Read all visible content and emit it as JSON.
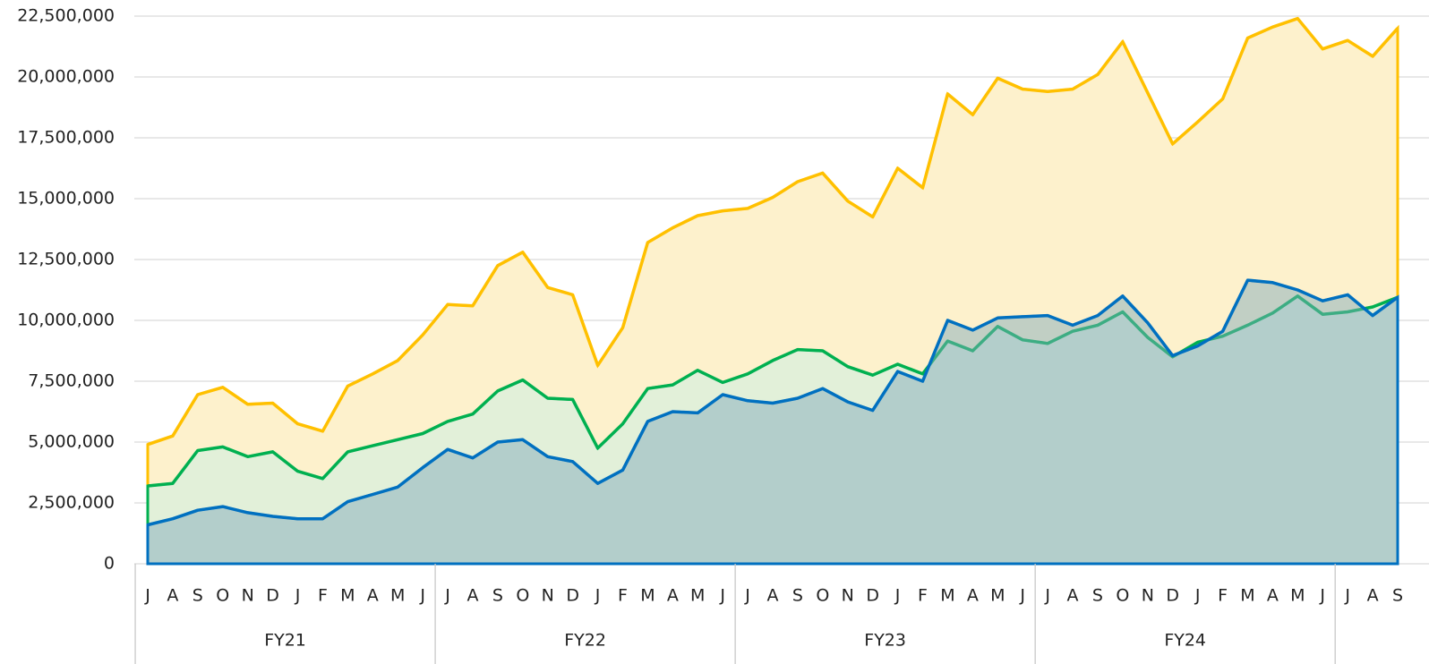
{
  "chart_data": {
    "type": "area",
    "categories": [
      "J",
      "A",
      "S",
      "O",
      "N",
      "D",
      "J",
      "F",
      "M",
      "A",
      "M",
      "J",
      "J",
      "A",
      "S",
      "O",
      "N",
      "D",
      "J",
      "F",
      "M",
      "A",
      "M",
      "J",
      "J",
      "A",
      "S",
      "O",
      "N",
      "D",
      "J",
      "F",
      "M",
      "A",
      "M",
      "J",
      "J",
      "A",
      "S",
      "O",
      "N",
      "D",
      "J",
      "F",
      "M",
      "A",
      "M",
      "J",
      "J",
      "A",
      "S"
    ],
    "groups": [
      {
        "label": "FY21",
        "count": 12
      },
      {
        "label": "FY22",
        "count": 12
      },
      {
        "label": "FY23",
        "count": 12
      },
      {
        "label": "FY24",
        "count": 12
      },
      {
        "label": null,
        "count": 3
      }
    ],
    "series": [
      {
        "color": "#FFC000",
        "fill": "#fdf1cc",
        "values": [
          4900000,
          5250000,
          6950000,
          7250000,
          6550000,
          6600000,
          5750000,
          5450000,
          7300000,
          7800000,
          8350000,
          9400000,
          10650000,
          10600000,
          12250000,
          12800000,
          11350000,
          11050000,
          8150000,
          9700000,
          13200000,
          13800000,
          14300000,
          14500000,
          14600000,
          15050000,
          15700000,
          16050000,
          14900000,
          14250000,
          16250000,
          15450000,
          19300000,
          18450000,
          19950000,
          19500000,
          19400000,
          19500000,
          20100000,
          21450000,
          19350000,
          17250000,
          18150000,
          19100000,
          21600000,
          22050000,
          22400000,
          21150000,
          21500000,
          20850000,
          22000000
        ]
      },
      {
        "color": "#00B050",
        "fill": "#e2f0d9",
        "values": [
          3200000,
          3300000,
          4650000,
          4800000,
          4400000,
          4600000,
          3800000,
          3500000,
          4600000,
          4850000,
          5100000,
          5350000,
          5850000,
          6150000,
          7100000,
          7550000,
          6800000,
          6750000,
          4750000,
          5750000,
          7200000,
          7350000,
          7950000,
          7450000,
          7800000,
          8350000,
          8800000,
          8750000,
          8100000,
          7750000,
          8200000,
          7800000,
          9150000,
          8750000,
          9750000,
          9200000,
          9050000,
          9550000,
          9800000,
          10350000,
          9300000,
          8500000,
          9100000,
          9350000,
          9800000,
          10300000,
          11000000,
          10250000,
          10350000,
          10550000,
          10950000
        ]
      },
      {
        "color": "#0070C0",
        "fill": "#7fa9bd",
        "values": [
          1600000,
          1850000,
          2200000,
          2350000,
          2100000,
          1950000,
          1850000,
          1850000,
          2550000,
          2850000,
          3150000,
          3950000,
          4700000,
          4350000,
          5000000,
          5100000,
          4400000,
          4200000,
          3300000,
          3850000,
          5850000,
          6250000,
          6200000,
          6950000,
          6700000,
          6600000,
          6800000,
          7200000,
          6650000,
          6300000,
          7900000,
          7500000,
          10000000,
          9600000,
          10100000,
          10150000,
          10200000,
          9800000,
          10200000,
          11000000,
          9900000,
          8550000,
          8950000,
          9550000,
          11650000,
          11550000,
          11250000,
          10800000,
          11050000,
          10200000,
          10950000
        ]
      }
    ],
    "ylim": [
      0,
      22500000
    ],
    "yticks": [
      0,
      {
        "value": 2500000,
        "label": "2,500,000"
      },
      {
        "value": 5000000,
        "label": "5,000,000"
      },
      {
        "value": 7500000,
        "label": "7,500,000"
      },
      {
        "value": 10000000,
        "label": "10,000,000"
      },
      {
        "value": 12500000,
        "label": "12,500,000"
      },
      {
        "value": 15000000,
        "label": "15,000,000"
      },
      {
        "value": 17500000,
        "label": "17,500,000"
      },
      {
        "value": 20000000,
        "label": "20,000,000"
      },
      {
        "value": 22500000,
        "label": "22,500,000"
      }
    ],
    "grid": true
  }
}
